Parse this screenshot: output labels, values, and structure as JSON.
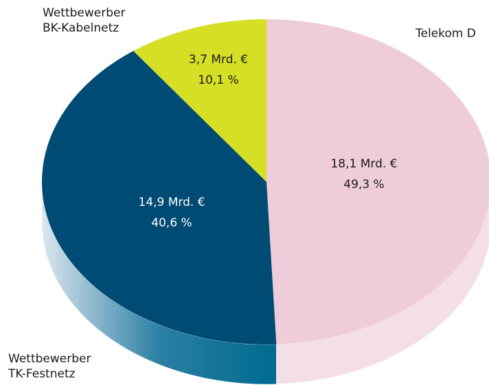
{
  "chart_data": {
    "type": "pie",
    "categories": [
      "Telekom D",
      "Wettbewerber TK-Festnetz",
      "Wettbewerber BK-Kabelnetz"
    ],
    "values": [
      49.3,
      40.6,
      10.1
    ],
    "value_labels": [
      "49,3 %",
      "40,6 %",
      "10,1 %"
    ],
    "amount_labels": [
      "18,1 Mrd. €",
      "14,9 Mrd. €",
      "3,7 Mrd. €"
    ],
    "colors": [
      "#efccd9",
      "#004b73",
      "#d5df25"
    ]
  }
}
